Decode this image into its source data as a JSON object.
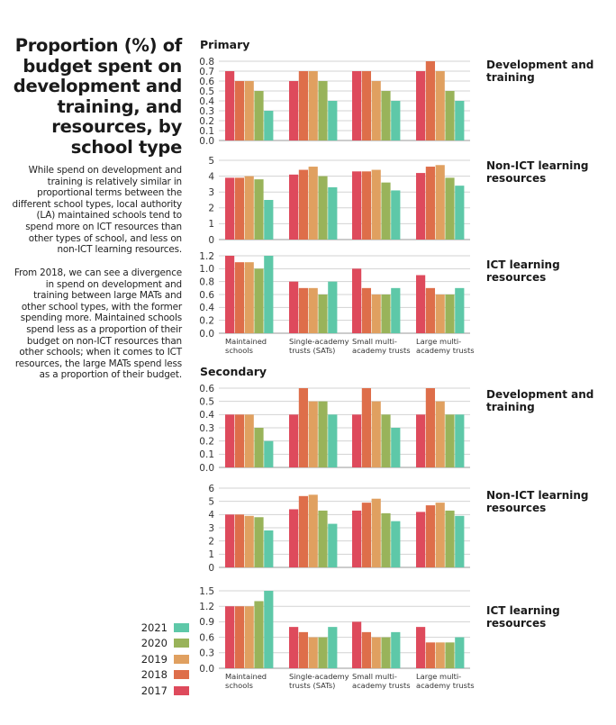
{
  "title": "Proportion (%) of budget spent on development and training, and resources, by school type",
  "paragraphs": [
    "While spend on development and training is relatively similar in proportional terms between the different school types, local authority (LA) maintained schools tend to spend more on ICT resources than other types of school, and less on non-ICT learning resources.",
    "From 2018, we can see a divergence in spend on development and training between large MATs and other school types, with the former spending more. Maintained schools spend less as a proportion of their budget on non-ICT resources than other schools; when it comes to ICT resources, the large MATs spend less as a proportion of their budget."
  ],
  "legend": [
    {
      "label": "2021",
      "color": "#5ec8a8"
    },
    {
      "label": "2020",
      "color": "#99b35a"
    },
    {
      "label": "2019",
      "color": "#e0a060"
    },
    {
      "label": "2018",
      "color": "#de6e4a"
    },
    {
      "label": "2017",
      "color": "#de4a5c"
    }
  ],
  "chart_data": [
    {
      "type": "bar",
      "section": "Primary",
      "title": "Development and training",
      "categories": [
        "Maintained schools",
        "Single-academy trusts (SATs)",
        "Small multi-academy trusts",
        "Large multi-academy trusts"
      ],
      "series": [
        {
          "name": "2017",
          "values": [
            0.7,
            0.6,
            0.7,
            0.7
          ]
        },
        {
          "name": "2018",
          "values": [
            0.6,
            0.7,
            0.7,
            0.8
          ]
        },
        {
          "name": "2019",
          "values": [
            0.6,
            0.7,
            0.6,
            0.7
          ]
        },
        {
          "name": "2020",
          "values": [
            0.5,
            0.6,
            0.5,
            0.5
          ]
        },
        {
          "name": "2021",
          "values": [
            0.3,
            0.4,
            0.4,
            0.4
          ]
        }
      ],
      "ylim": [
        0,
        0.8
      ],
      "yticks": [
        "0.0",
        "0.1",
        "0.2",
        "0.3",
        "0.4",
        "0.5",
        "0.6",
        "0.7",
        "0.8"
      ]
    },
    {
      "type": "bar",
      "section": "Primary",
      "title": "Non-ICT learning resources",
      "categories": [
        "Maintained schools",
        "Single-academy trusts (SATs)",
        "Small multi-academy trusts",
        "Large multi-academy trusts"
      ],
      "series": [
        {
          "name": "2017",
          "values": [
            3.9,
            4.1,
            4.3,
            4.2
          ]
        },
        {
          "name": "2018",
          "values": [
            3.9,
            4.4,
            4.3,
            4.6
          ]
        },
        {
          "name": "2019",
          "values": [
            4.0,
            4.6,
            4.4,
            4.7
          ]
        },
        {
          "name": "2020",
          "values": [
            3.8,
            4.0,
            3.6,
            3.9
          ]
        },
        {
          "name": "2021",
          "values": [
            2.5,
            3.3,
            3.1,
            3.4
          ]
        }
      ],
      "ylim": [
        0,
        5
      ],
      "yticks": [
        "0",
        "1",
        "2",
        "3",
        "4",
        "5"
      ]
    },
    {
      "type": "bar",
      "section": "Primary",
      "title": "ICT learning resources",
      "categories": [
        "Maintained schools",
        "Single-academy trusts (SATs)",
        "Small multi-academy trusts",
        "Large multi-academy trusts"
      ],
      "series": [
        {
          "name": "2017",
          "values": [
            1.2,
            0.8,
            1.0,
            0.9
          ]
        },
        {
          "name": "2018",
          "values": [
            1.1,
            0.7,
            0.7,
            0.7
          ]
        },
        {
          "name": "2019",
          "values": [
            1.1,
            0.7,
            0.6,
            0.6
          ]
        },
        {
          "name": "2020",
          "values": [
            1.0,
            0.6,
            0.6,
            0.6
          ]
        },
        {
          "name": "2021",
          "values": [
            1.2,
            0.8,
            0.7,
            0.7
          ]
        }
      ],
      "ylim": [
        0,
        1.2
      ],
      "yticks": [
        "0.0",
        "0.2",
        "0.4",
        "0.6",
        "0.8",
        "1.0",
        "1.2"
      ],
      "xtick_labels": [
        [
          "Maintained",
          "schools"
        ],
        [
          "Single-academy",
          "trusts (SATs)"
        ],
        [
          "Small multi-",
          "academy trusts"
        ],
        [
          "Large multi-",
          "academy trusts"
        ]
      ]
    },
    {
      "type": "bar",
      "section": "Secondary",
      "title": "Development and training",
      "categories": [
        "Maintained schools",
        "Single-academy trusts (SATs)",
        "Small multi-academy trusts",
        "Large multi-academy trusts"
      ],
      "series": [
        {
          "name": "2017",
          "values": [
            0.4,
            0.4,
            0.4,
            0.4
          ]
        },
        {
          "name": "2018",
          "values": [
            0.4,
            0.6,
            0.6,
            0.6
          ]
        },
        {
          "name": "2019",
          "values": [
            0.4,
            0.5,
            0.5,
            0.5
          ]
        },
        {
          "name": "2020",
          "values": [
            0.3,
            0.5,
            0.4,
            0.4
          ]
        },
        {
          "name": "2021",
          "values": [
            0.2,
            0.4,
            0.3,
            0.4
          ]
        }
      ],
      "ylim": [
        0,
        0.6
      ],
      "yticks": [
        "0.0",
        "0.1",
        "0.2",
        "0.3",
        "0.4",
        "0.5",
        "0.6"
      ]
    },
    {
      "type": "bar",
      "section": "Secondary",
      "title": "Non-ICT learning resources",
      "categories": [
        "Maintained schools",
        "Single-academy trusts (SATs)",
        "Small multi-academy trusts",
        "Large multi-academy trusts"
      ],
      "series": [
        {
          "name": "2017",
          "values": [
            4.0,
            4.4,
            4.3,
            4.2
          ]
        },
        {
          "name": "2018",
          "values": [
            4.0,
            5.4,
            4.9,
            4.7
          ]
        },
        {
          "name": "2019",
          "values": [
            3.9,
            5.5,
            5.2,
            4.9
          ]
        },
        {
          "name": "2020",
          "values": [
            3.8,
            4.3,
            4.1,
            4.3
          ]
        },
        {
          "name": "2021",
          "values": [
            2.8,
            3.3,
            3.5,
            3.9
          ]
        }
      ],
      "ylim": [
        0,
        6
      ],
      "yticks": [
        "0",
        "1",
        "2",
        "3",
        "4",
        "5",
        "6"
      ]
    },
    {
      "type": "bar",
      "section": "Secondary",
      "title": "ICT learning resources",
      "categories": [
        "Maintained schools",
        "Single-academy trusts (SATs)",
        "Small multi-academy trusts",
        "Large multi-academy trusts"
      ],
      "series": [
        {
          "name": "2017",
          "values": [
            1.2,
            0.8,
            0.9,
            0.8
          ]
        },
        {
          "name": "2018",
          "values": [
            1.2,
            0.7,
            0.7,
            0.5
          ]
        },
        {
          "name": "2019",
          "values": [
            1.2,
            0.6,
            0.6,
            0.5
          ]
        },
        {
          "name": "2020",
          "values": [
            1.3,
            0.6,
            0.6,
            0.5
          ]
        },
        {
          "name": "2021",
          "values": [
            1.5,
            0.8,
            0.7,
            0.6
          ]
        }
      ],
      "ylim": [
        0,
        1.5
      ],
      "yticks": [
        "0.0",
        "0.3",
        "0.6",
        "0.9",
        "1.2",
        "1.5"
      ],
      "xtick_labels": [
        [
          "Maintained",
          "schools"
        ],
        [
          "Single-academy",
          "trusts (SATs)"
        ],
        [
          "Small multi-",
          "academy trusts"
        ],
        [
          "Large multi-",
          "academy trusts"
        ]
      ]
    }
  ]
}
